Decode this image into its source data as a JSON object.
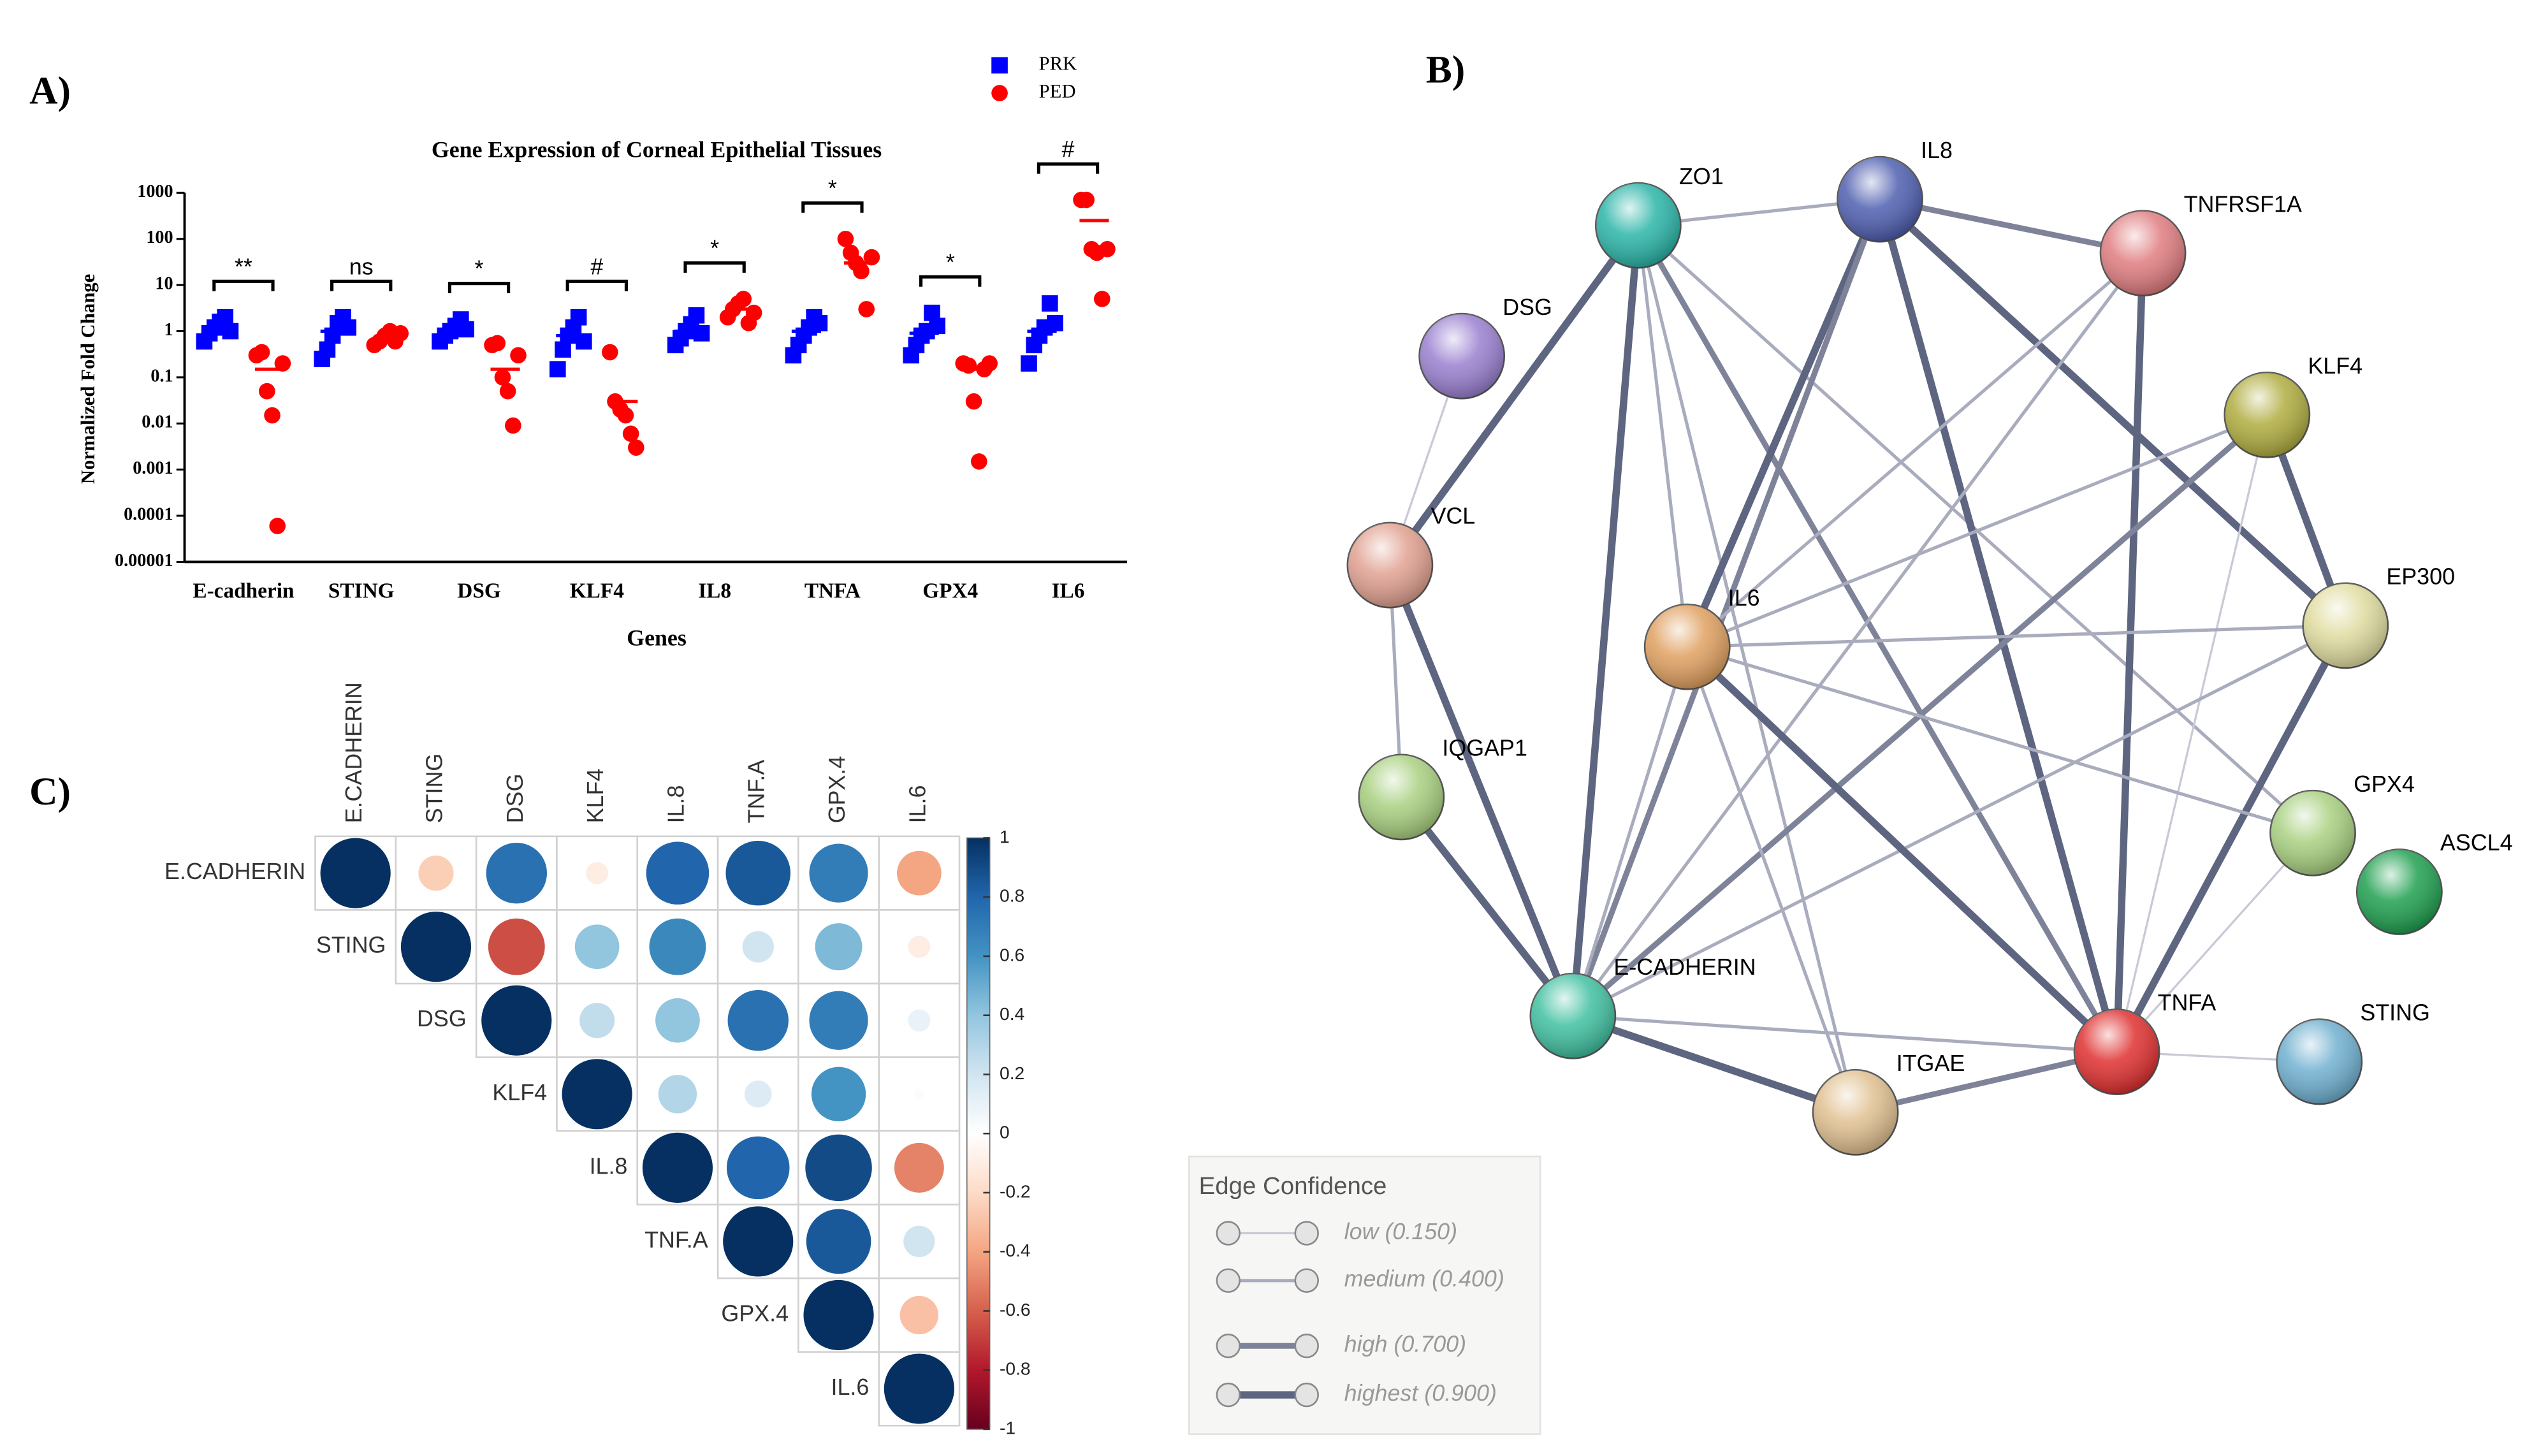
{
  "chart_data": [
    {
      "type": "strip",
      "panel": "A)",
      "title": "Gene Expression of Corneal Epithelial Tissues",
      "x_label": "Genes",
      "y_label": "Normalized Fold Change",
      "categories": [
        "E-cadherin",
        "STING",
        "DSG",
        "KLF4",
        "IL8",
        "TNFA",
        "GPX4",
        "IL6"
      ],
      "log_scale": true,
      "ylim": [
        1e-05,
        1000
      ],
      "yticks": [
        1000,
        100,
        10,
        1,
        0.1,
        0.01,
        0.001,
        0.0001,
        1e-05
      ],
      "annotations": [
        "**",
        "ns",
        "*",
        "#",
        "*",
        "*",
        "*",
        "#"
      ],
      "series": [
        {
          "name": "PRK",
          "color": "#0000ff",
          "marker": "square",
          "values": [
            [
              0.6,
              0.9,
              1.2,
              1.6,
              2,
              1
            ],
            [
              0.25,
              0.4,
              0.8,
              1.5,
              2,
              1.2
            ],
            [
              0.6,
              0.8,
              1,
              1.3,
              1.8,
              1.1
            ],
            [
              0.15,
              0.4,
              0.8,
              1.2,
              2,
              0.6
            ],
            [
              0.5,
              0.7,
              1,
              1.4,
              2.2,
              0.9
            ],
            [
              0.3,
              0.5,
              0.8,
              1.2,
              2,
              1.5
            ],
            [
              0.3,
              0.5,
              0.8,
              1,
              2.5,
              1.3
            ],
            [
              0.2,
              0.5,
              0.8,
              1.2,
              4,
              1.5
            ]
          ],
          "means": [
            1,
            1,
            1,
            0.8,
            1,
            1,
            0.9,
            1
          ]
        },
        {
          "name": "PED",
          "color": "#ff0000",
          "marker": "circle",
          "values": [
            [
              0.3,
              0.35,
              0.05,
              0.015,
              6e-05,
              0.2
            ],
            [
              0.5,
              0.6,
              0.8,
              1,
              0.6,
              0.9
            ],
            [
              0.5,
              0.55,
              0.1,
              0.05,
              0.009,
              0.3
            ],
            [
              0.35,
              0.03,
              0.02,
              0.015,
              0.006,
              0.003
            ],
            [
              2,
              3,
              4,
              5,
              1.5,
              2.5
            ],
            [
              100,
              50,
              30,
              20,
              3,
              40
            ],
            [
              0.2,
              0.18,
              0.03,
              0.0015,
              0.15,
              0.2
            ],
            [
              700,
              700,
              60,
              50,
              5,
              60
            ]
          ],
          "means": [
            0.15,
            0.7,
            0.15,
            0.03,
            3,
            30,
            0.15,
            250
          ]
        }
      ]
    },
    {
      "type": "network",
      "panel": "B)",
      "legend_title": "Edge Confidence",
      "legend": [
        {
          "label": "low (0.150)",
          "confidence": 0.15
        },
        {
          "label": "medium (0.400)",
          "confidence": 0.4
        },
        {
          "label": "high (0.700)",
          "confidence": 0.7
        },
        {
          "label": "highest (0.900)",
          "confidence": 0.9
        }
      ],
      "nodes": [
        {
          "label": "ZO1",
          "color": "#2bb5a8"
        },
        {
          "label": "IL8",
          "color": "#4f5fb0"
        },
        {
          "label": "TNFRSF1A",
          "color": "#e07d80"
        },
        {
          "label": "DSG",
          "color": "#9a80d0"
        },
        {
          "label": "KLF4",
          "color": "#b0ad40"
        },
        {
          "label": "VCL",
          "color": "#e0a090"
        },
        {
          "label": "EP300",
          "color": "#e0dca0"
        },
        {
          "label": "IL6",
          "color": "#e0a060"
        },
        {
          "label": "IQGAP1",
          "color": "#a8d080"
        },
        {
          "label": "GPX4",
          "color": "#a8d080"
        },
        {
          "label": "ASCL4",
          "color": "#20a050"
        },
        {
          "label": "E-CADHERIN",
          "color": "#40c0a0"
        },
        {
          "label": "TNFA",
          "color": "#e03030"
        },
        {
          "label": "STING",
          "color": "#70b0d0"
        },
        {
          "label": "ITGAE",
          "color": "#e0c090"
        }
      ],
      "edges": [
        {
          "source": "ZO1",
          "target": "IL8",
          "confidence": 0.4
        },
        {
          "source": "ZO1",
          "target": "VCL",
          "confidence": 0.9
        },
        {
          "source": "ZO1",
          "target": "E-CADHERIN",
          "confidence": 0.9
        },
        {
          "source": "ZO1",
          "target": "IL6",
          "confidence": 0.4
        },
        {
          "source": "ZO1",
          "target": "TNFA",
          "confidence": 0.7
        },
        {
          "source": "ZO1",
          "target": "ITGAE",
          "confidence": 0.4
        },
        {
          "source": "ZO1",
          "target": "GPX4",
          "confidence": 0.4
        },
        {
          "source": "IL8",
          "target": "TNFRSF1A",
          "confidence": 0.7
        },
        {
          "source": "IL8",
          "target": "IL6",
          "confidence": 0.9
        },
        {
          "source": "IL8",
          "target": "E-CADHERIN",
          "confidence": 0.7
        },
        {
          "source": "IL8",
          "target": "TNFA",
          "confidence": 0.9
        },
        {
          "source": "IL8",
          "target": "EP300",
          "confidence": 0.9
        },
        {
          "source": "TNFRSF1A",
          "target": "TNFA",
          "confidence": 0.9
        },
        {
          "source": "TNFRSF1A",
          "target": "IL6",
          "confidence": 0.4
        },
        {
          "source": "TNFRSF1A",
          "target": "E-CADHERIN",
          "confidence": 0.4
        },
        {
          "source": "DSG",
          "target": "VCL",
          "confidence": 0.15
        },
        {
          "source": "KLF4",
          "target": "EP300",
          "confidence": 0.9
        },
        {
          "source": "KLF4",
          "target": "E-CADHERIN",
          "confidence": 0.7
        },
        {
          "source": "KLF4",
          "target": "IL6",
          "confidence": 0.4
        },
        {
          "source": "KLF4",
          "target": "TNFA",
          "confidence": 0.15
        },
        {
          "source": "VCL",
          "target": "IQGAP1",
          "confidence": 0.4
        },
        {
          "source": "VCL",
          "target": "E-CADHERIN",
          "confidence": 0.9
        },
        {
          "source": "EP300",
          "target": "IL6",
          "confidence": 0.4
        },
        {
          "source": "EP300",
          "target": "TNFA",
          "confidence": 0.9
        },
        {
          "source": "EP300",
          "target": "E-CADHERIN",
          "confidence": 0.4
        },
        {
          "source": "IL6",
          "target": "TNFA",
          "confidence": 0.9
        },
        {
          "source": "IL6",
          "target": "E-CADHERIN",
          "confidence": 0.4
        },
        {
          "source": "IL6",
          "target": "ITGAE",
          "confidence": 0.4
        },
        {
          "source": "IL6",
          "target": "GPX4",
          "confidence": 0.4
        },
        {
          "source": "IQGAP1",
          "target": "E-CADHERIN",
          "confidence": 0.9
        },
        {
          "source": "GPX4",
          "target": "TNFA",
          "confidence": 0.15
        },
        {
          "source": "E-CADHERIN",
          "target": "TNFA",
          "confidence": 0.4
        },
        {
          "source": "E-CADHERIN",
          "target": "ITGAE",
          "confidence": 0.9
        },
        {
          "source": "ITGAE",
          "target": "TNFA",
          "confidence": 0.7
        },
        {
          "source": "TNFA",
          "target": "STING",
          "confidence": 0.15
        }
      ]
    },
    {
      "type": "correlation",
      "panel": "C)",
      "categories": [
        "E.CADHERIN",
        "STING",
        "DSG",
        "KLF4",
        "IL.8",
        "TNF.A",
        "GPX.4",
        "IL.6"
      ],
      "clim": [
        -1,
        1
      ],
      "cticks": [
        1,
        0.8,
        0.6,
        0.4,
        0.2,
        0,
        -0.2,
        -0.4,
        -0.6,
        -0.8,
        -1
      ],
      "matrix": [
        [
          1,
          -0.25,
          0.75,
          -0.1,
          0.8,
          0.85,
          0.7,
          -0.4
        ],
        [
          null,
          1,
          -0.65,
          0.4,
          0.65,
          0.2,
          0.45,
          -0.1
        ],
        [
          null,
          null,
          1,
          0.25,
          0.4,
          0.75,
          0.7,
          0.1
        ],
        [
          null,
          null,
          null,
          1,
          0.3,
          0.15,
          0.6,
          0.02
        ],
        [
          null,
          null,
          null,
          null,
          1,
          0.8,
          0.9,
          -0.5
        ],
        [
          null,
          null,
          null,
          null,
          null,
          1,
          0.85,
          0.2
        ],
        [
          null,
          null,
          null,
          null,
          null,
          null,
          1,
          -0.3
        ],
        [
          null,
          null,
          null,
          null,
          null,
          null,
          null,
          1
        ]
      ]
    }
  ]
}
